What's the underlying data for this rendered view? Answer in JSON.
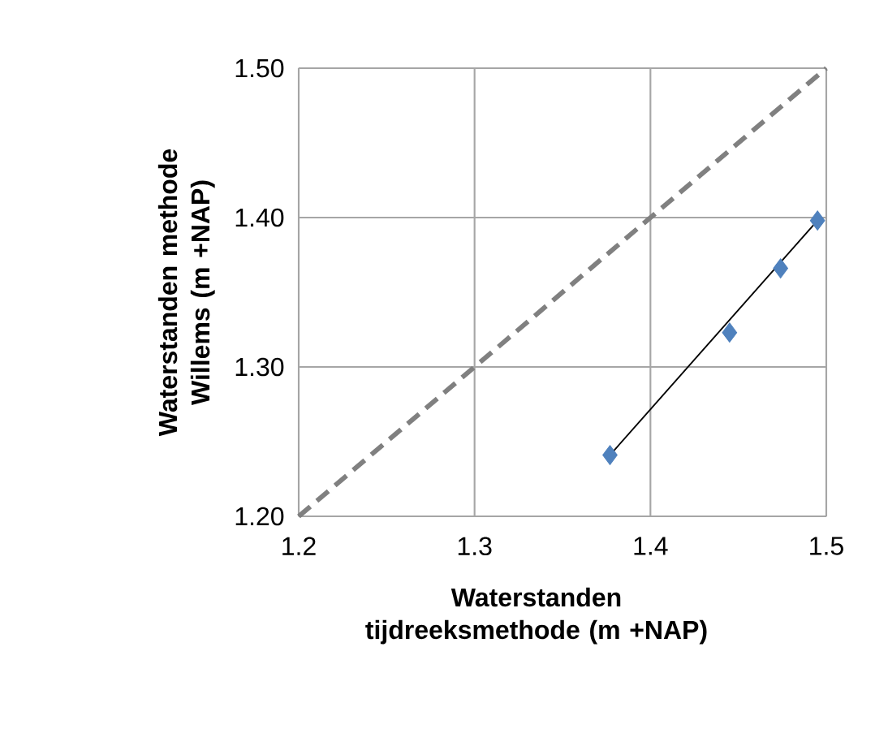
{
  "chart_data": {
    "type": "scatter",
    "xlabel": "Waterstanden tijdreeksmethode (m +NAP)",
    "ylabel": "Waterstanden methode Willems (m +NAP)",
    "xlim": [
      1.2,
      1.5
    ],
    "ylim": [
      1.2,
      1.5
    ],
    "xticks": [
      1.2,
      1.3,
      1.4,
      1.5
    ],
    "yticks": [
      {
        "value": 1.2,
        "label": "1.20"
      },
      {
        "value": 1.3,
        "label": "1.30"
      },
      {
        "value": 1.4,
        "label": "1.40"
      },
      {
        "value": 1.5,
        "label": "1.50"
      }
    ],
    "grid": true,
    "series": [
      {
        "type": "line",
        "color": "#808080",
        "line_style": "dashed",
        "marker": "none",
        "x": [
          1.2,
          1.5
        ],
        "values": [
          1.2,
          1.5
        ]
      },
      {
        "type": "line",
        "color": "#000000",
        "line_style": "solid",
        "marker": "none",
        "x": [
          1.377,
          1.495
        ],
        "values": [
          1.241,
          1.398
        ]
      },
      {
        "color": "#4f81bd",
        "marker": "diamond",
        "x": [
          1.377,
          1.445,
          1.474,
          1.495
        ],
        "values": [
          1.241,
          1.323,
          1.366,
          1.398
        ]
      }
    ]
  }
}
